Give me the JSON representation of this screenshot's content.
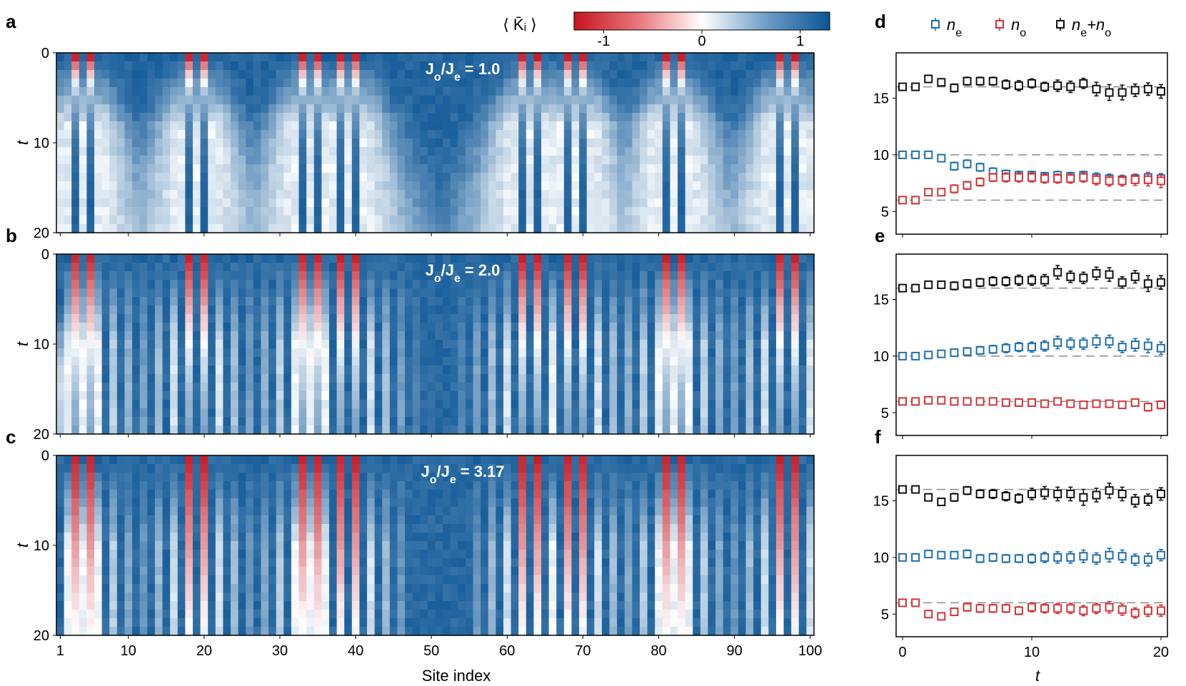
{
  "figure": {
    "heatmap_panels": [
      {
        "letter": "a",
        "ratio_prefix": "J",
        "ratio_sub1": "o",
        "ratio_mid": "/J",
        "ratio_sub2": "e",
        "ratio_value": "= 1.0"
      },
      {
        "letter": "b",
        "ratio_prefix": "J",
        "ratio_sub1": "o",
        "ratio_mid": "/J",
        "ratio_sub2": "e",
        "ratio_value": "= 2.0"
      },
      {
        "letter": "c",
        "ratio_prefix": "J",
        "ratio_sub1": "o",
        "ratio_mid": "/J",
        "ratio_sub2": "e",
        "ratio_value": "= 3.17"
      }
    ],
    "scatter_panels": [
      {
        "letter": "d"
      },
      {
        "letter": "e"
      },
      {
        "letter": "f"
      }
    ],
    "heatmap_xlabel": "Site index",
    "heatmap_ylabel": "t",
    "scatter_xlabel": "t",
    "heatmap_xticks": [
      "1",
      "10",
      "20",
      "30",
      "40",
      "50",
      "60",
      "70",
      "80",
      "90",
      "100"
    ],
    "heatmap_yticks": [
      "0",
      "10",
      "20"
    ],
    "scatter_xticks": [
      "0",
      "10",
      "20"
    ],
    "scatter_yticks": [
      "5",
      "10",
      "15"
    ],
    "colorbar": {
      "label": "⟨ K̄ᵢ ⟩",
      "ticks": [
        "-1",
        "0",
        "1"
      ],
      "range": [
        -1.3,
        1.3
      ],
      "colors": {
        "neg": "#c8141e",
        "zero": "#ffffff",
        "pos": "#0b5595"
      }
    },
    "legend": [
      {
        "key": "ne",
        "main": "n",
        "sub": "e",
        "color": "#1f6fae"
      },
      {
        "key": "no",
        "main": "n",
        "sub": "o",
        "color": "#d13538"
      },
      {
        "key": "sum",
        "main": "n",
        "sub": "e",
        "plus": "+n",
        "sub2": "o",
        "color": "#111111"
      }
    ]
  },
  "chart_data": [
    {
      "type": "heatmap",
      "panel": "a",
      "title": "Jo/Je = 1.0",
      "xlabel": "Site index",
      "ylabel": "t",
      "xlim": [
        1,
        100
      ],
      "ylim": [
        0,
        20
      ],
      "zlim": [
        -1.3,
        1.3
      ],
      "description_values": "red stripes (K=-1.2) at sites 3,5,18,20,33,35,38,40,62,64,68,70,81,83,96,98 at early t; light regions spreading around them with t"
    },
    {
      "type": "heatmap",
      "panel": "b",
      "title": "Jo/Je = 2.0",
      "xlabel": "Site index",
      "ylabel": "t",
      "xlim": [
        1,
        100
      ],
      "ylim": [
        0,
        20
      ],
      "zlim": [
        -1.3,
        1.3
      ]
    },
    {
      "type": "heatmap",
      "panel": "c",
      "title": "Jo/Je = 3.17",
      "xlabel": "Site index",
      "ylabel": "t",
      "xlim": [
        1,
        100
      ],
      "ylim": [
        0,
        20
      ],
      "zlim": [
        -1.3,
        1.3
      ]
    },
    {
      "type": "scatter",
      "panel": "d",
      "xlabel": "t",
      "xlim": [
        -0.5,
        20.5
      ],
      "ylim": [
        3,
        19
      ],
      "reference_lines": [
        16,
        10,
        6
      ],
      "x": [
        0,
        1,
        2,
        3,
        4,
        5,
        6,
        7,
        8,
        9,
        10,
        11,
        12,
        13,
        14,
        15,
        16,
        17,
        18,
        19,
        20
      ],
      "series": [
        {
          "name": "ne",
          "values": [
            10,
            10,
            10,
            9.7,
            9,
            9.2,
            8.9,
            8.5,
            8.3,
            8.2,
            8.2,
            8.1,
            8.2,
            8.1,
            8.2,
            8,
            7.9,
            7.8,
            7.9,
            8,
            7.9
          ],
          "errors": [
            0.25,
            0.25,
            0.25,
            0.3,
            0.35,
            0.35,
            0.35,
            0.35,
            0.35,
            0.35,
            0.35,
            0.35,
            0.35,
            0.35,
            0.35,
            0.4,
            0.4,
            0.4,
            0.4,
            0.45,
            0.45
          ]
        },
        {
          "name": "no",
          "values": [
            6,
            6,
            6.7,
            6.7,
            7,
            7.3,
            7.6,
            8,
            8,
            8,
            8,
            7.9,
            7.9,
            7.9,
            8,
            7.8,
            7.7,
            7.7,
            7.8,
            7.8,
            7.7
          ],
          "errors": [
            0.25,
            0.25,
            0.3,
            0.3,
            0.35,
            0.35,
            0.35,
            0.35,
            0.4,
            0.4,
            0.4,
            0.4,
            0.4,
            0.4,
            0.4,
            0.45,
            0.45,
            0.45,
            0.5,
            0.55,
            0.6
          ]
        },
        {
          "name": "ne+no",
          "values": [
            16,
            16,
            16.7,
            16.4,
            15.9,
            16.5,
            16.5,
            16.5,
            16.2,
            16.1,
            16.3,
            16,
            16.1,
            16,
            16.3,
            15.8,
            15.5,
            15.5,
            15.7,
            15.8,
            15.6
          ],
          "errors": [
            0.25,
            0.25,
            0.3,
            0.3,
            0.35,
            0.35,
            0.35,
            0.35,
            0.4,
            0.45,
            0.4,
            0.4,
            0.5,
            0.5,
            0.45,
            0.6,
            0.7,
            0.65,
            0.55,
            0.55,
            0.6
          ]
        }
      ]
    },
    {
      "type": "scatter",
      "panel": "e",
      "xlabel": "t",
      "xlim": [
        -0.5,
        20.5
      ],
      "ylim": [
        3,
        19
      ],
      "reference_lines": [
        16,
        10,
        6
      ],
      "x": [
        0,
        1,
        2,
        3,
        4,
        5,
        6,
        7,
        8,
        9,
        10,
        11,
        12,
        13,
        14,
        15,
        16,
        17,
        18,
        19,
        20
      ],
      "series": [
        {
          "name": "ne",
          "values": [
            10,
            10,
            10.1,
            10.2,
            10.3,
            10.4,
            10.5,
            10.6,
            10.7,
            10.8,
            10.8,
            10.9,
            11.2,
            11.1,
            11.1,
            11.3,
            11.3,
            10.8,
            11,
            10.9,
            10.7
          ],
          "errors": [
            0.25,
            0.25,
            0.25,
            0.3,
            0.3,
            0.35,
            0.35,
            0.35,
            0.4,
            0.4,
            0.45,
            0.45,
            0.55,
            0.5,
            0.5,
            0.55,
            0.55,
            0.5,
            0.55,
            0.6,
            0.55
          ]
        },
        {
          "name": "no",
          "values": [
            6,
            6,
            6.1,
            6.1,
            6,
            6,
            6,
            6,
            5.9,
            5.9,
            5.9,
            5.8,
            6,
            5.8,
            5.7,
            5.8,
            5.8,
            5.7,
            5.9,
            5.5,
            5.7
          ],
          "errors": [
            0.2,
            0.2,
            0.25,
            0.25,
            0.25,
            0.25,
            0.25,
            0.25,
            0.25,
            0.3,
            0.3,
            0.3,
            0.3,
            0.3,
            0.3,
            0.3,
            0.3,
            0.3,
            0.3,
            0.35,
            0.35
          ]
        },
        {
          "name": "ne+no",
          "values": [
            16,
            16,
            16.3,
            16.3,
            16.2,
            16.4,
            16.5,
            16.6,
            16.6,
            16.7,
            16.7,
            16.7,
            17.4,
            17,
            16.9,
            17.3,
            17.2,
            16.5,
            17,
            16.4,
            16.5
          ],
          "errors": [
            0.25,
            0.25,
            0.3,
            0.3,
            0.35,
            0.35,
            0.35,
            0.4,
            0.4,
            0.45,
            0.45,
            0.5,
            0.6,
            0.5,
            0.5,
            0.55,
            0.6,
            0.5,
            0.55,
            0.7,
            0.6
          ]
        }
      ]
    },
    {
      "type": "scatter",
      "panel": "f",
      "xlabel": "t",
      "xlim": [
        -0.5,
        20.5
      ],
      "ylim": [
        3,
        19
      ],
      "reference_lines": [
        16,
        6
      ],
      "x": [
        0,
        1,
        2,
        3,
        4,
        5,
        6,
        7,
        8,
        9,
        10,
        11,
        12,
        13,
        14,
        15,
        16,
        17,
        18,
        19,
        20
      ],
      "series": [
        {
          "name": "ne",
          "values": [
            10,
            10,
            10.3,
            10.2,
            10.2,
            10.3,
            9.9,
            10,
            9.9,
            9.9,
            9.9,
            10,
            10,
            10,
            10.1,
            9.9,
            10.2,
            10.1,
            9.8,
            9.8,
            10.2
          ],
          "errors": [
            0.25,
            0.25,
            0.3,
            0.3,
            0.3,
            0.35,
            0.35,
            0.35,
            0.35,
            0.35,
            0.4,
            0.45,
            0.5,
            0.5,
            0.55,
            0.5,
            0.6,
            0.55,
            0.5,
            0.55,
            0.5
          ]
        },
        {
          "name": "no",
          "values": [
            6,
            6,
            5,
            4.8,
            5.2,
            5.6,
            5.5,
            5.5,
            5.5,
            5.3,
            5.6,
            5.5,
            5.5,
            5.5,
            5.3,
            5.5,
            5.6,
            5.4,
            5.1,
            5.3,
            5.3
          ],
          "errors": [
            0.25,
            0.25,
            0.3,
            0.3,
            0.3,
            0.35,
            0.35,
            0.35,
            0.35,
            0.35,
            0.4,
            0.4,
            0.45,
            0.45,
            0.45,
            0.45,
            0.5,
            0.5,
            0.45,
            0.5,
            0.5
          ]
        },
        {
          "name": "ne+no",
          "values": [
            16,
            16,
            15.3,
            14.9,
            15.3,
            15.9,
            15.6,
            15.6,
            15.4,
            15.2,
            15.6,
            15.7,
            15.6,
            15.6,
            15.3,
            15.5,
            15.9,
            15.6,
            15,
            15.1,
            15.6
          ],
          "errors": [
            0.25,
            0.25,
            0.3,
            0.3,
            0.35,
            0.35,
            0.35,
            0.4,
            0.4,
            0.4,
            0.5,
            0.55,
            0.6,
            0.6,
            0.7,
            0.6,
            0.65,
            0.6,
            0.55,
            0.5,
            0.55
          ]
        }
      ]
    }
  ]
}
